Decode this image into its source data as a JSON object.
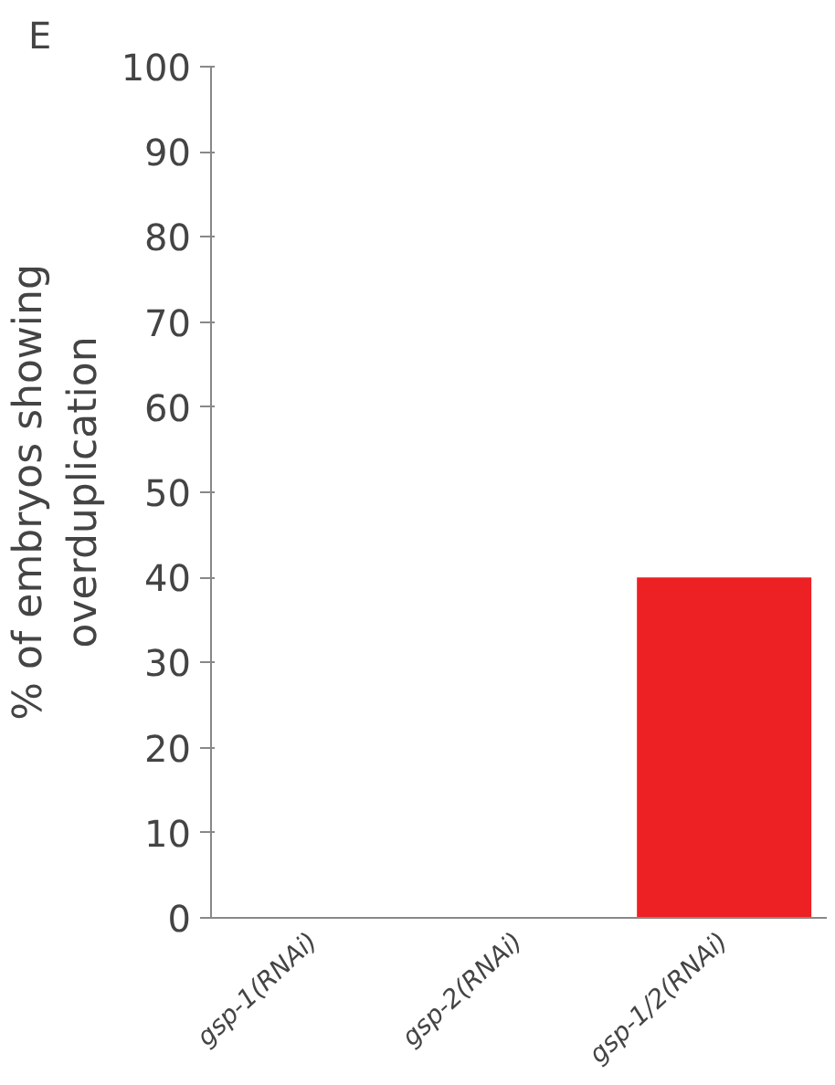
{
  "chart_data": {
    "type": "bar",
    "ylabel": "% of embryos showing\noverduplication",
    "categories": [
      "gsp-1(RNAi)",
      "gsp-2(RNAi)",
      "gsp-1/2(RNAi)"
    ],
    "values": [
      0,
      0,
      40
    ],
    "color": "#ed2024",
    "ylim": [
      0,
      100
    ],
    "yticks": [
      0,
      10,
      20,
      30,
      40,
      50,
      60,
      70,
      80,
      90,
      100
    ],
    "grid": false,
    "annotations": [
      "E"
    ]
  }
}
